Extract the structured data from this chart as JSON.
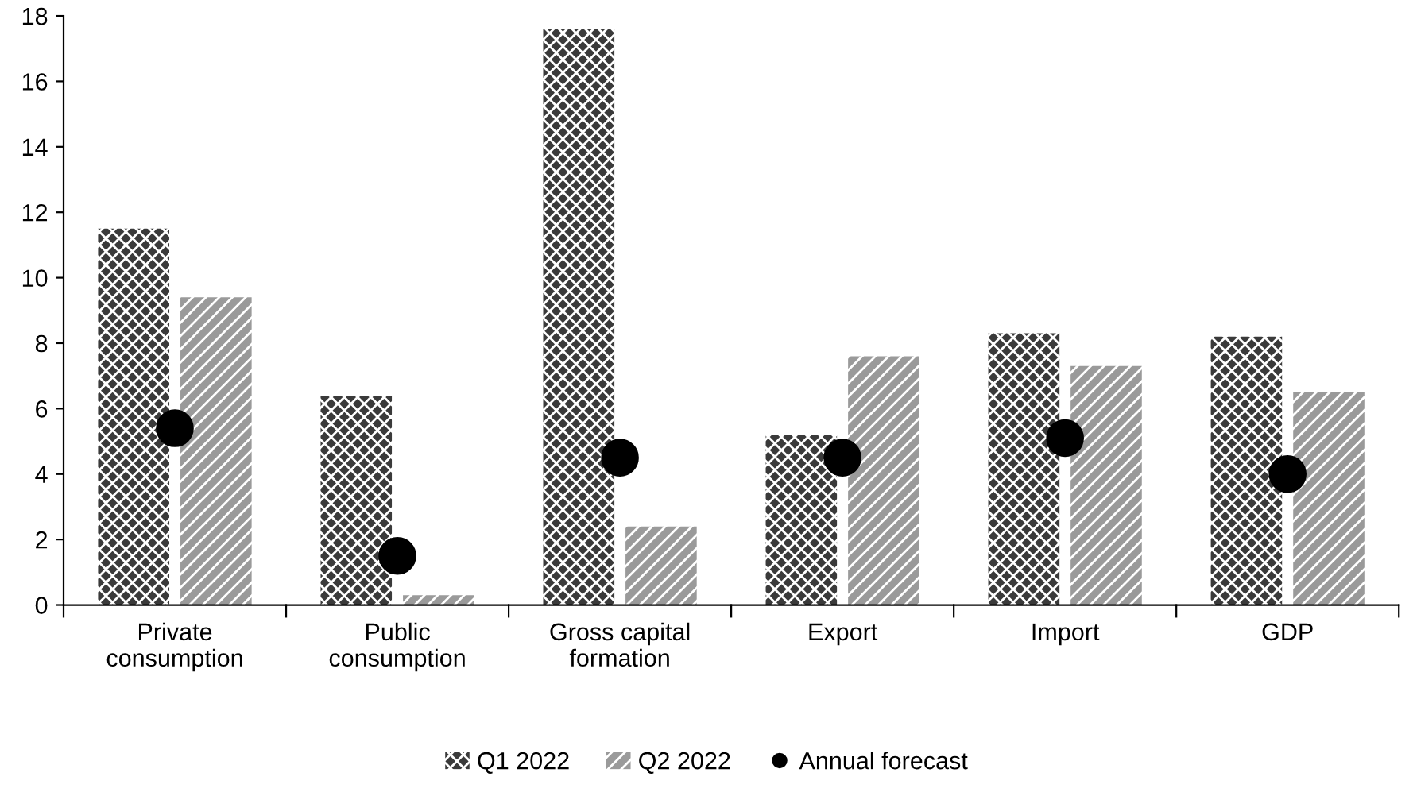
{
  "chart_data": {
    "type": "bar",
    "categories": [
      "Private\nconsumption",
      "Public\nconsumption",
      "Gross capital\nformation",
      "Export",
      "Import",
      "GDP"
    ],
    "series": [
      {
        "name": "Q1 2022",
        "color": "#3a3a3a",
        "values": [
          11.5,
          6.4,
          17.6,
          5.2,
          8.3,
          8.2
        ]
      },
      {
        "name": "Q2 2022",
        "color": "#9a9a9a",
        "values": [
          9.4,
          0.3,
          2.4,
          7.6,
          7.3,
          6.5
        ]
      },
      {
        "name": "Annual forecast",
        "type": "scatter",
        "color": "#000000",
        "x": [
          "Private\nconsumption",
          "Public\nconsumption",
          "Gross capital\nformation",
          "Export",
          "Import",
          "GDP"
        ],
        "values": [
          5.4,
          1.5,
          4.5,
          4.5,
          5.1,
          4.0
        ]
      }
    ],
    "ylim": [
      0,
      18
    ],
    "yticks": [
      0,
      2,
      4,
      6,
      8,
      10,
      12,
      14,
      16,
      18
    ],
    "grid": false,
    "legend": "bottom",
    "marker": "circle"
  }
}
